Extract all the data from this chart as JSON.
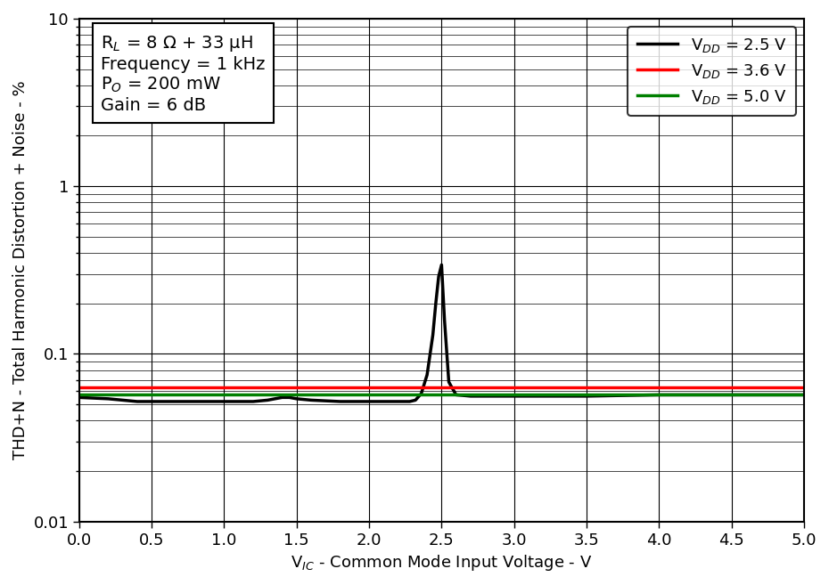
{
  "xlabel": "V$_{IC}$ - Common Mode Input Voltage - V",
  "ylabel": "THD+N - Total Harmonic Distortion + Noise - %",
  "xlim": [
    0.0,
    5.0
  ],
  "ylim_log": [
    0.01,
    10
  ],
  "xticks": [
    0.0,
    0.5,
    1.0,
    1.5,
    2.0,
    2.5,
    3.0,
    3.5,
    4.0,
    4.5,
    5.0
  ],
  "annotation_lines": [
    "R$_L$ = 8 Ω + 33 μH",
    "Frequency = 1 kHz",
    "P$_O$ = 200 mW",
    "Gain = 6 dB"
  ],
  "legend_entries": [
    {
      "label": "V$_{DD}$ = 2.5 V",
      "color": "#000000"
    },
    {
      "label": "V$_{DD}$ = 3.6 V",
      "color": "#ff0000"
    },
    {
      "label": "V$_{DD}$ = 5.0 V",
      "color": "#008000"
    }
  ],
  "series": [
    {
      "name": "VDD_2p5",
      "color": "#000000",
      "x": [
        0.0,
        0.2,
        0.4,
        0.6,
        0.8,
        1.0,
        1.2,
        1.3,
        1.35,
        1.4,
        1.45,
        1.5,
        1.6,
        1.8,
        2.0,
        2.1,
        2.2,
        2.28,
        2.32,
        2.36,
        2.4,
        2.44,
        2.46,
        2.48,
        2.5,
        2.52,
        2.55,
        2.6,
        2.7,
        2.8,
        2.9,
        3.0,
        3.5,
        4.0,
        4.5,
        5.0
      ],
      "y": [
        0.055,
        0.054,
        0.052,
        0.052,
        0.052,
        0.052,
        0.052,
        0.053,
        0.054,
        0.055,
        0.055,
        0.054,
        0.053,
        0.052,
        0.052,
        0.052,
        0.052,
        0.052,
        0.053,
        0.058,
        0.075,
        0.13,
        0.2,
        0.29,
        0.34,
        0.16,
        0.068,
        0.057,
        0.056,
        0.056,
        0.056,
        0.056,
        0.056,
        0.057,
        0.057,
        0.057
      ]
    },
    {
      "name": "VDD_3p6",
      "color": "#ff0000",
      "x": [
        0.0,
        0.5,
        1.0,
        1.5,
        2.0,
        2.5,
        3.0,
        3.5,
        4.0,
        4.5,
        5.0
      ],
      "y": [
        0.063,
        0.063,
        0.063,
        0.063,
        0.063,
        0.063,
        0.063,
        0.063,
        0.063,
        0.063,
        0.063
      ]
    },
    {
      "name": "VDD_5p0",
      "color": "#008000",
      "x": [
        0.0,
        0.5,
        1.0,
        1.5,
        2.0,
        2.5,
        3.0,
        3.5,
        4.0,
        4.5,
        5.0
      ],
      "y": [
        0.057,
        0.057,
        0.057,
        0.057,
        0.057,
        0.057,
        0.057,
        0.057,
        0.057,
        0.057,
        0.057
      ]
    }
  ],
  "background_color": "#ffffff",
  "grid_major_color": "#000000",
  "grid_minor_color": "#000000",
  "grid_major_lw": 0.8,
  "grid_minor_lw": 0.5,
  "linewidth": 2.5,
  "annotation_fontsize": 14,
  "legend_fontsize": 13,
  "axis_label_fontsize": 13,
  "tick_fontsize": 13
}
